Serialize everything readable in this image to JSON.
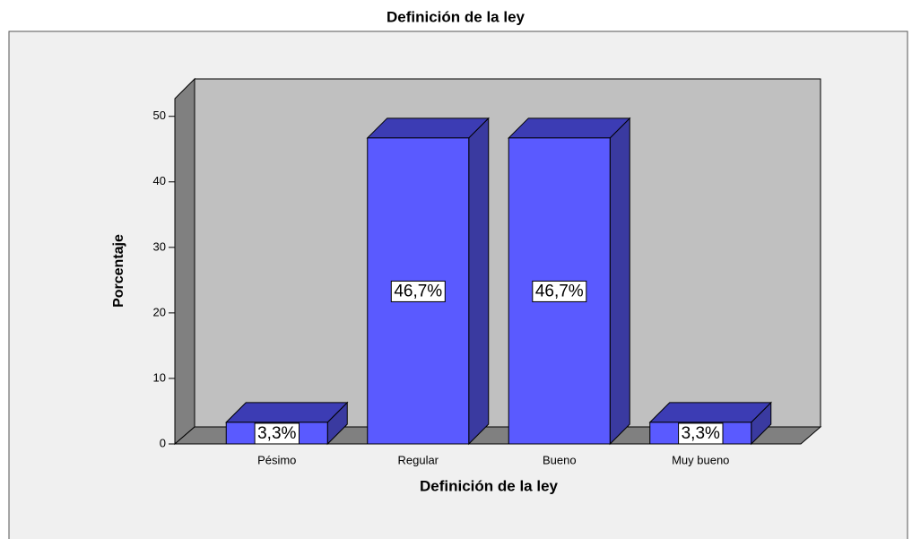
{
  "chart_data": {
    "type": "bar3d",
    "title": "Definición de la ley",
    "x_label": "Definición de la ley",
    "y_label": "Porcentaje",
    "categories": [
      "Pésimo",
      "Regular",
      "Bueno",
      "Muy bueno"
    ],
    "values": [
      3.3,
      46.7,
      46.7,
      3.3
    ],
    "value_labels": [
      "3,3%",
      "46,7%",
      "46,7%",
      "3,3%"
    ],
    "color": "#5a5aff",
    "ylim": [
      0,
      52.7
    ],
    "yticks": [
      0,
      10,
      20,
      30,
      40,
      50
    ]
  }
}
